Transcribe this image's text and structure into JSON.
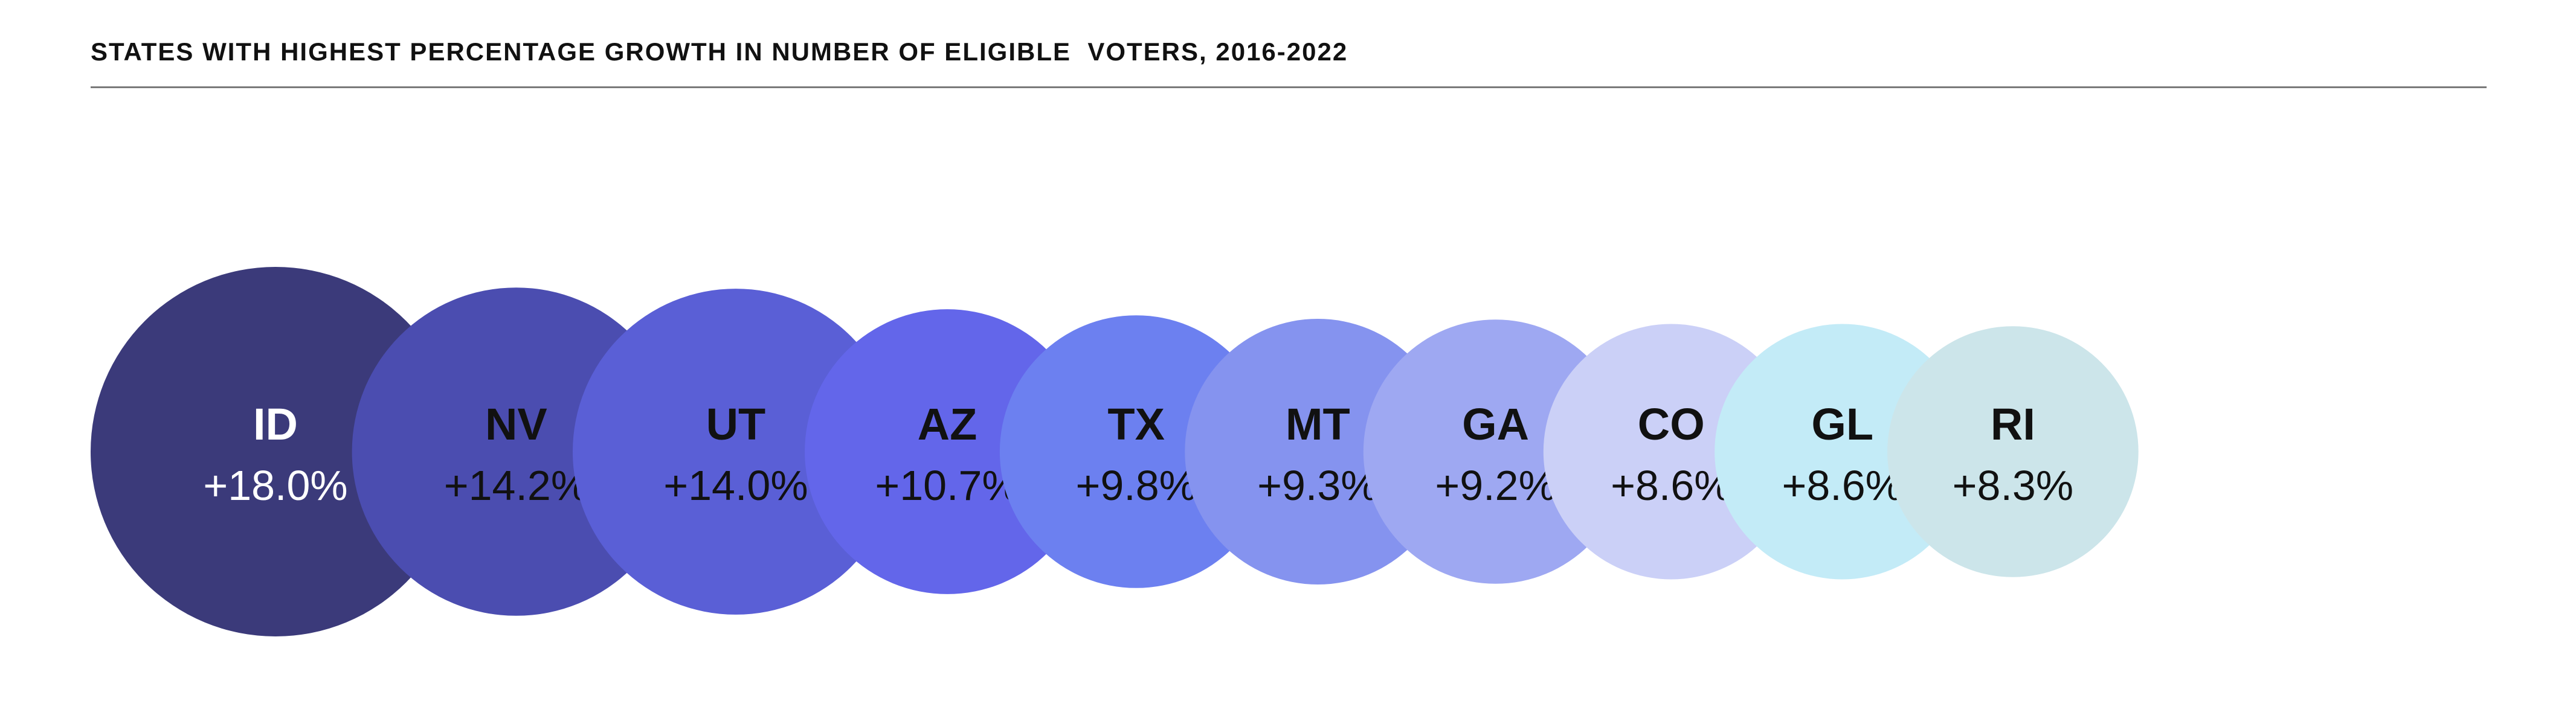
{
  "title": "STATES WITH HIGHEST PERCENTAGE GROWTH IN NUMBER OF ELIGIBLE  VOTERS, 2016-2022",
  "chart_data": {
    "type": "bubble",
    "title": "STATES WITH HIGHEST PERCENTAGE GROWTH IN NUMBER OF ELIGIBLE  VOTERS, 2016-2022",
    "unit": "%",
    "points": [
      {
        "state": "ID",
        "label": "+18.0%",
        "value": 18.0,
        "color": "#3b3a7a",
        "text_color": "#ffffff"
      },
      {
        "state": "NV",
        "label": "+14.2%",
        "value": 14.2,
        "color": "#4b4db0",
        "text_color": "#111111"
      },
      {
        "state": "UT",
        "label": "+14.0%",
        "value": 14.0,
        "color": "#5a5fd6",
        "text_color": "#111111"
      },
      {
        "state": "AZ",
        "label": "+10.7%",
        "value": 10.7,
        "color": "#6366ea",
        "text_color": "#111111"
      },
      {
        "state": "TX",
        "label": "+9.8%",
        "value": 9.8,
        "color": "#6c80f0",
        "text_color": "#111111"
      },
      {
        "state": "MT",
        "label": "+9.3%",
        "value": 9.3,
        "color": "#8593ef",
        "text_color": "#111111"
      },
      {
        "state": "GA",
        "label": "+9.2%",
        "value": 9.2,
        "color": "#9ea8f2",
        "text_color": "#111111"
      },
      {
        "state": "CO",
        "label": "+8.6%",
        "value": 8.6,
        "color": "#cbd0f7",
        "text_color": "#111111"
      },
      {
        "state": "GL",
        "label": "+8.6%",
        "value": 8.6,
        "color": "#c3ebf7",
        "text_color": "#111111"
      },
      {
        "state": "RI",
        "label": "+8.3%",
        "value": 8.3,
        "color": "#cce5ea",
        "text_color": "#111111"
      }
    ]
  }
}
